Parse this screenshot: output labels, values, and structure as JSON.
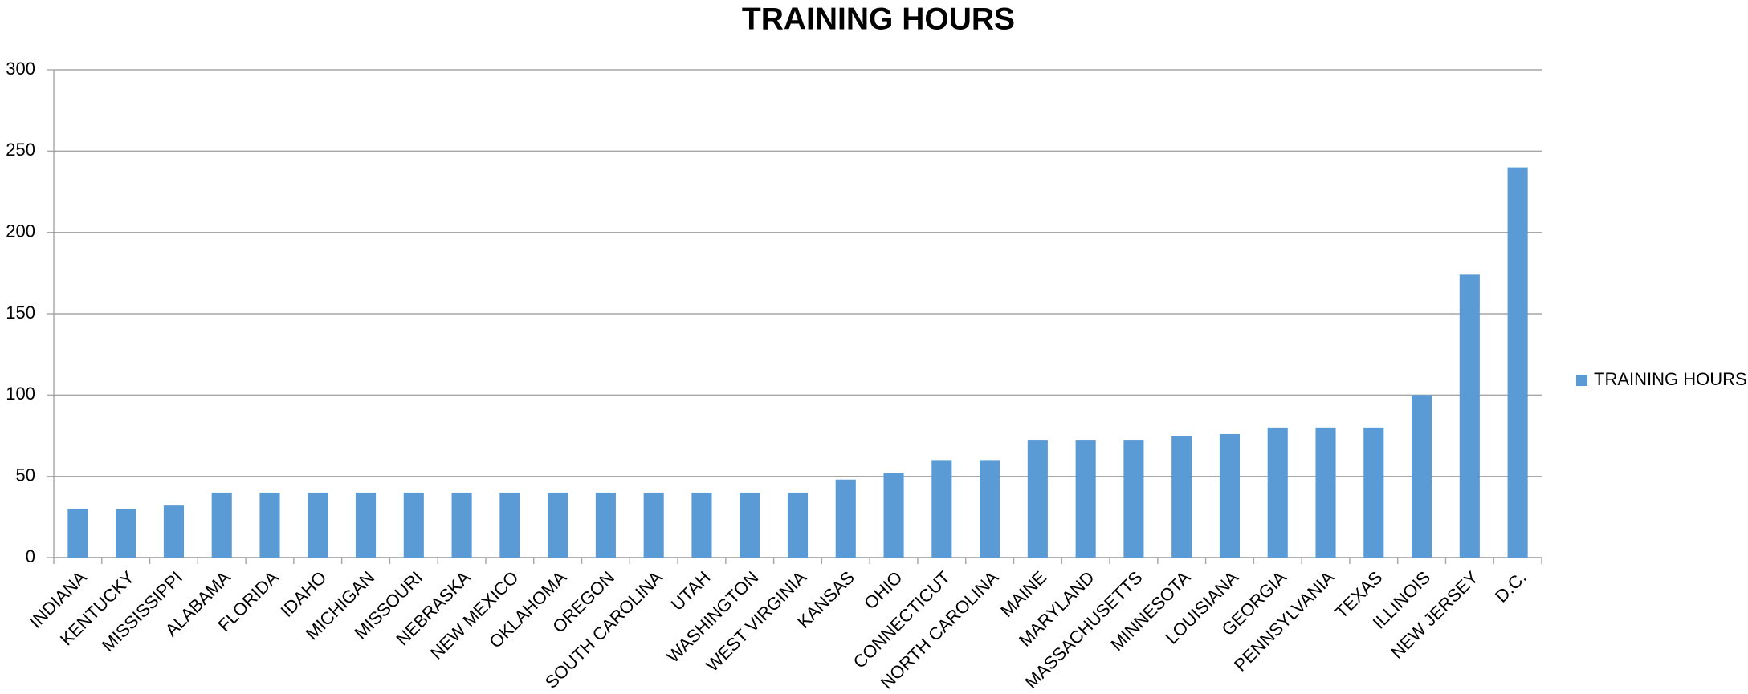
{
  "chart_data": {
    "type": "bar",
    "title": "TRAINING HOURS",
    "categories": [
      "INDIANA",
      "KENTUCKY",
      "MISSISSIPPI",
      "ALABAMA",
      "FLORIDA",
      "IDAHO",
      "MICHIGAN",
      "MISSOURI",
      "NEBRASKA",
      "NEW MEXICO",
      "OKLAHOMA",
      "OREGON",
      "SOUTH CAROLINA",
      "UTAH",
      "WASHINGTON",
      "WEST VIRGINIA",
      "KANSAS",
      "OHIO",
      "CONNECTICUT",
      "NORTH CAROLINA",
      "MAINE",
      "MARYLAND",
      "MASSACHUSETTS",
      "MINNESOTA",
      "LOUISIANA",
      "GEORGIA",
      "PENNSYLVANIA",
      "TEXAS",
      "ILLINOIS",
      "NEW JERSEY",
      "D.C."
    ],
    "series": [
      {
        "name": "TRAINING HOURS",
        "color": "#5b9bd5",
        "values": [
          30,
          30,
          32,
          40,
          40,
          40,
          40,
          40,
          40,
          40,
          40,
          40,
          40,
          40,
          40,
          40,
          48,
          52,
          60,
          60,
          72,
          72,
          72,
          75,
          76,
          80,
          80,
          80,
          100,
          174,
          240
        ]
      }
    ],
    "ylim": [
      0,
      300
    ],
    "yticks": [
      0,
      50,
      100,
      150,
      200,
      250,
      300
    ],
    "grid": true,
    "legend": "right"
  }
}
